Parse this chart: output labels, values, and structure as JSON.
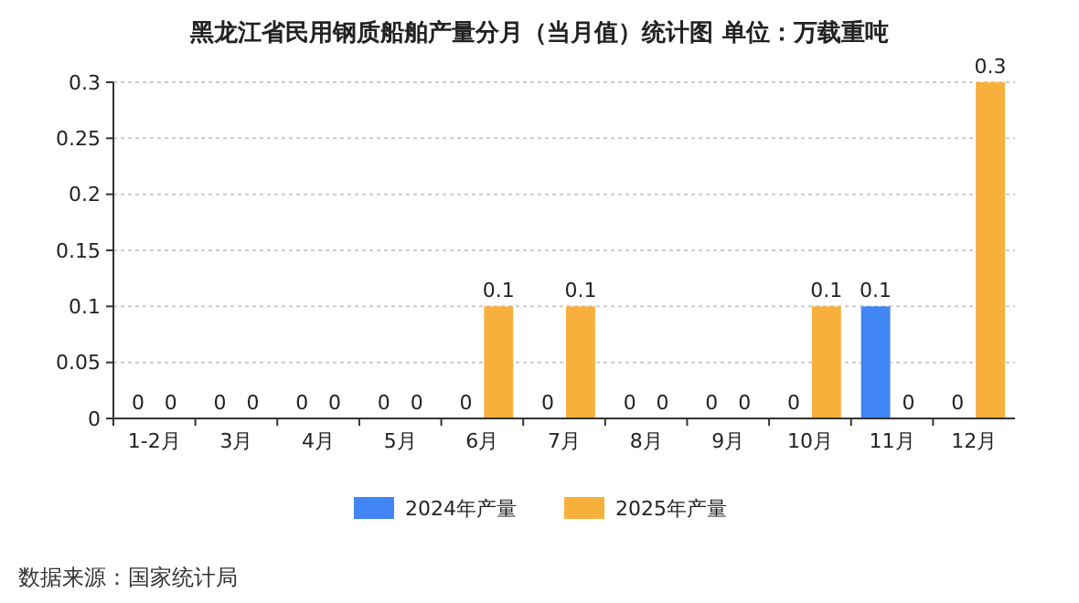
{
  "chart_data": {
    "type": "bar",
    "title": "黑龙江省民用钢质船舶产量分月（当月值）统计图 单位：万载重吨",
    "categories": [
      "1-2月",
      "3月",
      "4月",
      "5月",
      "6月",
      "7月",
      "8月",
      "9月",
      "10月",
      "11月",
      "12月"
    ],
    "series": [
      {
        "name": "2024年产量",
        "color": "#4285f4",
        "values": [
          0,
          0,
          0,
          0,
          0,
          0,
          0,
          0,
          0,
          0.1,
          0
        ]
      },
      {
        "name": "2025年产量",
        "color": "#f8b03c",
        "values": [
          0,
          0,
          0,
          0,
          0.1,
          0.1,
          0,
          0,
          0.1,
          0,
          0.3
        ]
      }
    ],
    "ylim": [
      0,
      0.3
    ],
    "yticks": [
      0,
      0.05,
      0.1,
      0.15,
      0.2,
      0.25,
      0.3
    ],
    "grid": "y",
    "legend": "bottom",
    "data_labels": true,
    "annotations": [
      "数据来源：国家统计局"
    ]
  }
}
